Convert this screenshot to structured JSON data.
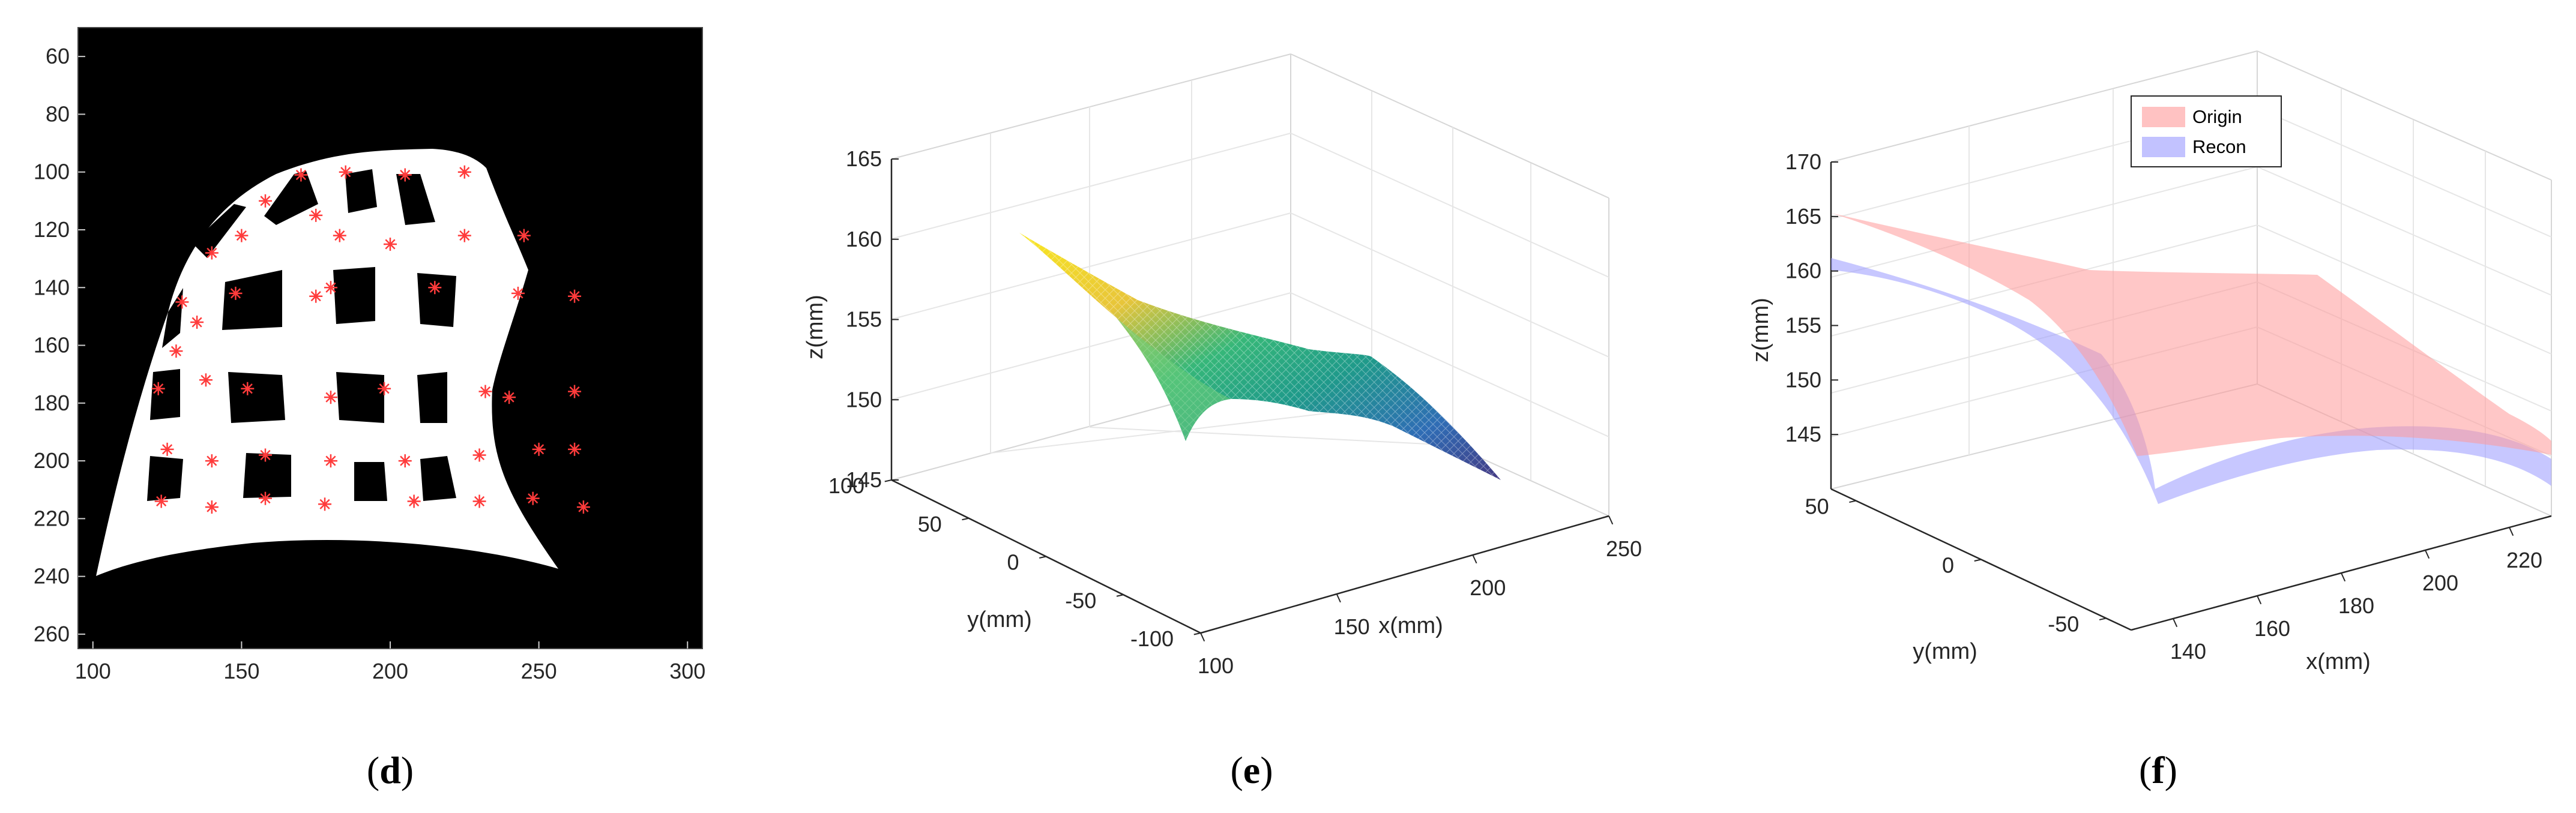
{
  "chart_data": [
    {
      "type": "image",
      "caption": "d",
      "xlim": [
        95,
        305
      ],
      "ylim": [
        50,
        265
      ],
      "xticks": [
        100,
        150,
        200,
        250,
        300
      ],
      "yticks": [
        60,
        80,
        100,
        120,
        140,
        160,
        180,
        200,
        220,
        240,
        260
      ],
      "background": "#000000",
      "marker_color": "#ff3b3b",
      "markers": [
        [
          170,
          101
        ],
        [
          185,
          100
        ],
        [
          205,
          101
        ],
        [
          225,
          100
        ],
        [
          158,
          110
        ],
        [
          175,
          115
        ],
        [
          150,
          122
        ],
        [
          183,
          122
        ],
        [
          140,
          128
        ],
        [
          200,
          125
        ],
        [
          225,
          122
        ],
        [
          245,
          122
        ],
        [
          130,
          145
        ],
        [
          135,
          152
        ],
        [
          128,
          162
        ],
        [
          148,
          142
        ],
        [
          175,
          143
        ],
        [
          180,
          140
        ],
        [
          215,
          140
        ],
        [
          243,
          142
        ],
        [
          262,
          143
        ],
        [
          122,
          175
        ],
        [
          138,
          172
        ],
        [
          152,
          175
        ],
        [
          180,
          178
        ],
        [
          198,
          175
        ],
        [
          232,
          176
        ],
        [
          240,
          178
        ],
        [
          262,
          176
        ],
        [
          125,
          196
        ],
        [
          140,
          200
        ],
        [
          158,
          198
        ],
        [
          180,
          200
        ],
        [
          205,
          200
        ],
        [
          230,
          198
        ],
        [
          250,
          196
        ],
        [
          262,
          196
        ],
        [
          123,
          214
        ],
        [
          140,
          216
        ],
        [
          158,
          213
        ],
        [
          178,
          215
        ],
        [
          208,
          214
        ],
        [
          230,
          214
        ],
        [
          248,
          213
        ],
        [
          265,
          216
        ]
      ]
    },
    {
      "type": "surface3d",
      "caption": "e",
      "xlabel": "x(mm)",
      "ylabel": "y(mm)",
      "zlabel": "z(mm)",
      "xlim": [
        100,
        250
      ],
      "ylim": [
        -100,
        100
      ],
      "zlim": [
        145,
        165
      ],
      "xticks": [
        100,
        150,
        200,
        250
      ],
      "yticks": [
        -100,
        -50,
        0,
        50,
        100
      ],
      "zticks": [
        145,
        150,
        155,
        160,
        165
      ],
      "colormap": [
        "#f9e721",
        "#36b779",
        "#1f9a8a",
        "#3e4a89",
        "#443983"
      ]
    },
    {
      "type": "surface3d",
      "caption": "f",
      "xlabel": "x(mm)",
      "ylabel": "y(mm)",
      "zlabel": "z(mm)",
      "xlim": [
        130,
        230
      ],
      "ylim": [
        -60,
        60
      ],
      "zlim": [
        140,
        170
      ],
      "xticks": [
        140,
        160,
        180,
        200,
        220
      ],
      "yticks": [
        -50,
        0,
        50
      ],
      "zticks": [
        145,
        150,
        155,
        160,
        165,
        170
      ],
      "legend_position": "top-center",
      "series": [
        {
          "name": "Origin",
          "color": "#ff9999"
        },
        {
          "name": "Recon",
          "color": "#9999ff"
        }
      ]
    }
  ]
}
